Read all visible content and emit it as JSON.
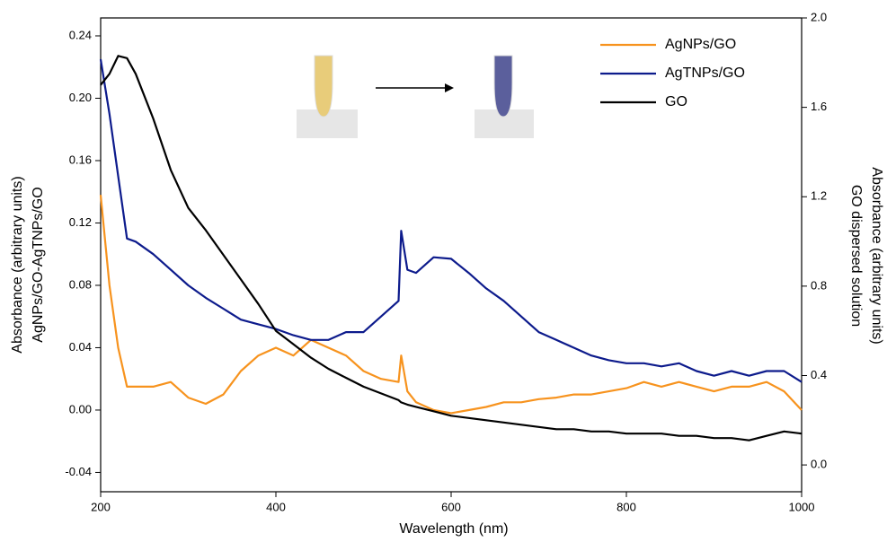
{
  "chart_data": {
    "type": "line",
    "xlabel": "Wavelength (nm)",
    "ylabel": [
      "Absorbance (arbitrary units)",
      "AgNPs/GO-AgTNPs/GO"
    ],
    "y2label": [
      "Absorbance (arbitrary units)",
      "GO dispersed solution"
    ],
    "x": [
      200,
      210,
      220,
      230,
      240,
      260,
      280,
      300,
      320,
      340,
      360,
      380,
      400,
      420,
      440,
      460,
      480,
      500,
      520,
      540,
      543,
      550,
      560,
      580,
      600,
      620,
      640,
      660,
      680,
      700,
      720,
      740,
      760,
      780,
      800,
      820,
      840,
      860,
      880,
      900,
      920,
      940,
      960,
      980,
      1000
    ],
    "series": [
      {
        "name": "AgNPs/GO",
        "color": "#f7931e",
        "values": [
          0.138,
          0.08,
          0.04,
          0.015,
          0.015,
          0.015,
          0.018,
          0.008,
          0.004,
          0.01,
          0.025,
          0.035,
          0.04,
          0.035,
          0.045,
          0.04,
          0.035,
          0.025,
          0.02,
          0.018,
          0.035,
          0.012,
          0.005,
          0.0,
          -0.002,
          0.0,
          0.002,
          0.005,
          0.005,
          0.007,
          0.008,
          0.01,
          0.01,
          0.012,
          0.014,
          0.018,
          0.015,
          0.018,
          0.015,
          0.012,
          0.015,
          0.015,
          0.018,
          0.012,
          0.0
        ]
      },
      {
        "name": "AgTNPs/GO",
        "color": "#0d1b8c",
        "values": [
          0.225,
          0.19,
          0.15,
          0.11,
          0.108,
          0.1,
          0.09,
          0.08,
          0.072,
          0.065,
          0.058,
          0.055,
          0.052,
          0.048,
          0.045,
          0.045,
          0.05,
          0.05,
          0.06,
          0.07,
          0.115,
          0.09,
          0.088,
          0.098,
          0.097,
          0.088,
          0.078,
          0.07,
          0.06,
          0.05,
          0.045,
          0.04,
          0.035,
          0.032,
          0.03,
          0.03,
          0.028,
          0.03,
          0.025,
          0.022,
          0.025,
          0.022,
          0.025,
          0.025,
          0.018
        ]
      },
      {
        "name": "GO",
        "color": "#000000",
        "axis": "y2",
        "values": [
          1.7,
          1.75,
          1.83,
          1.82,
          1.75,
          1.55,
          1.32,
          1.15,
          1.05,
          0.94,
          0.83,
          0.72,
          0.6,
          0.54,
          0.48,
          0.43,
          0.39,
          0.35,
          0.32,
          0.29,
          0.28,
          0.27,
          0.26,
          0.24,
          0.22,
          0.21,
          0.2,
          0.19,
          0.18,
          0.17,
          0.16,
          0.16,
          0.15,
          0.15,
          0.14,
          0.14,
          0.14,
          0.13,
          0.13,
          0.12,
          0.12,
          0.11,
          0.13,
          0.15,
          0.14
        ]
      }
    ],
    "xlim": [
      200,
      1000
    ],
    "xticks": [
      200,
      400,
      600,
      800,
      1000
    ],
    "ylim": [
      -0.0524,
      0.2515
    ],
    "yticks": [
      -0.04,
      {
        "value": 0,
        "label": "0.00"
      },
      0.04,
      0.08,
      0.12,
      0.16,
      {
        "value": 0.2,
        "label": "0.20"
      },
      0.24
    ],
    "y2lim": [
      -0.12,
      2.0
    ],
    "y2ticks": [
      {
        "value": 0,
        "label": "0.0"
      },
      0.4,
      0.8,
      1.2,
      1.6,
      {
        "value": 2,
        "label": "2.0"
      }
    ],
    "legend": "upper right"
  }
}
